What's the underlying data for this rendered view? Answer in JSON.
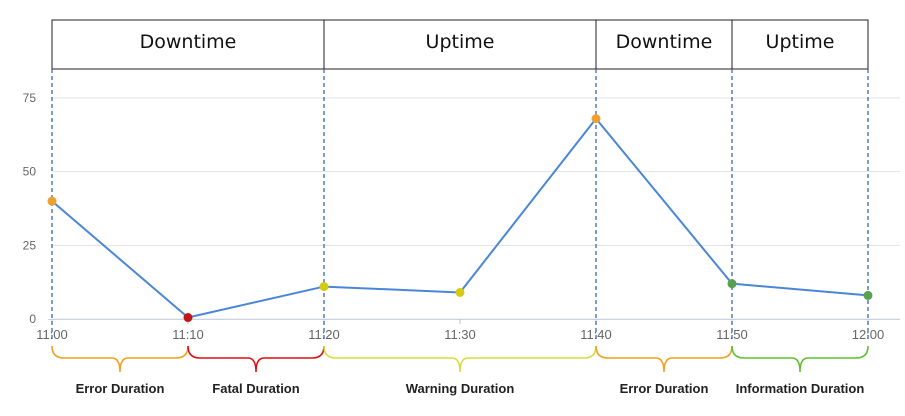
{
  "chart_data": {
    "type": "line",
    "title": "",
    "xlabel": "",
    "ylabel": "",
    "categories": [
      "11:00",
      "11:10",
      "11:20",
      "11:30",
      "11:40",
      "11:50",
      "12:00"
    ],
    "y_ticks": [
      "0",
      "25",
      "50",
      "75"
    ],
    "ylim": [
      0,
      80
    ],
    "grid": true,
    "series": [
      {
        "values": [
          40,
          0.5,
          11,
          9,
          68,
          12,
          8
        ],
        "color": "#4a86d8",
        "point_colors": [
          "#f0a030",
          "#c01818",
          "#d4cc10",
          "#d4cc10",
          "#f0a030",
          "#5aa050",
          "#5aa050"
        ]
      }
    ],
    "header_segments": [
      {
        "label": "Downtime",
        "from": "11:00",
        "to": "11:20"
      },
      {
        "label": "Uptime",
        "from": "11:20",
        "to": "11:40"
      },
      {
        "label": "Downtime",
        "from": "11:40",
        "to": "11:50"
      },
      {
        "label": "Uptime",
        "from": "11:50",
        "to": "12:00"
      }
    ],
    "duration_bands": [
      {
        "label": "Error Duration",
        "from": "11:00",
        "to": "11:10",
        "color": "#f0a020"
      },
      {
        "label": "Fatal Duration",
        "from": "11:10",
        "to": "11:20",
        "color": "#e01010"
      },
      {
        "label": "Warning Duration",
        "from": "11:20",
        "to": "11:40",
        "color": "#d8dc40"
      },
      {
        "label": "Error Duration",
        "from": "11:40",
        "to": "11:50",
        "color": "#f0a020"
      },
      {
        "label": "Information Duration",
        "from": "11:50",
        "to": "12:00",
        "color": "#60c030"
      }
    ],
    "divider_color": "#3a66b0"
  }
}
